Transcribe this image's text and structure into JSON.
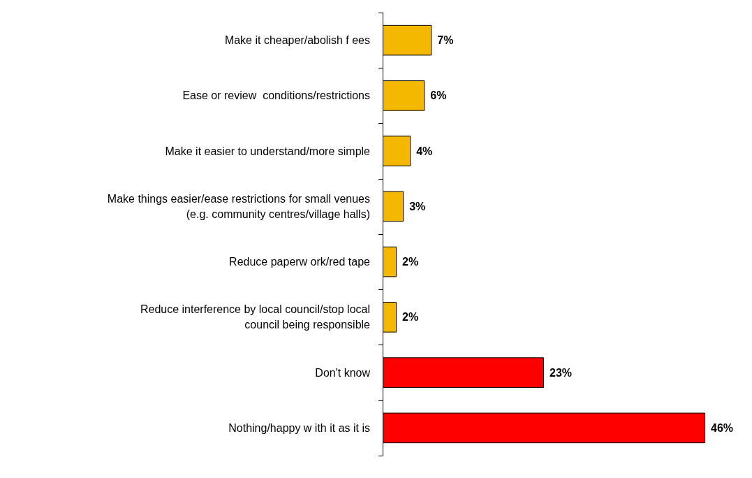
{
  "chart_data": {
    "type": "bar",
    "orientation": "horizontal",
    "categories": [
      "Make it cheaper/abolish f ees",
      "Ease or review  conditions/restrictions",
      "Make it easier to understand/more simple",
      "Make things easier/ease restrictions for small venues\n(e.g. community centres/village halls)",
      "Reduce paperw ork/red tape",
      "Reduce interference by local council/stop local\ncouncil being responsible",
      "Don't know",
      "Nothing/happy w ith it as it is"
    ],
    "values": [
      7,
      6,
      4,
      3,
      2,
      2,
      23,
      46
    ],
    "value_labels": [
      "7%",
      "6%",
      "4%",
      "3%",
      "2%",
      "2%",
      "23%",
      "46%"
    ],
    "colors": [
      "#f5b800",
      "#f5b800",
      "#f5b800",
      "#f5b800",
      "#f5b800",
      "#f5b800",
      "#ff0000",
      "#ff0000"
    ],
    "grid": false
  }
}
